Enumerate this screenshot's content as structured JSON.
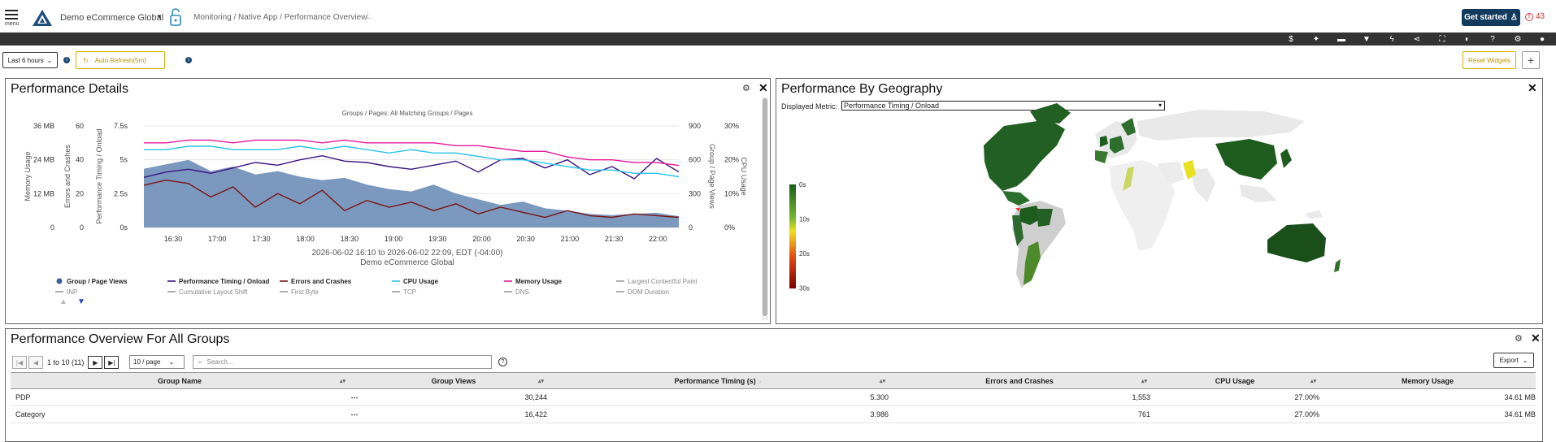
{
  "header": {
    "menu_label": "menu",
    "app_name": "Demo eCommerce Global",
    "breadcrumb": "Monitoring / Native App / Performance Overview",
    "get_started": "Get started",
    "alert_count": "43"
  },
  "toolbar_icons": [
    "dollar-icon",
    "magic-icon",
    "comment-icon",
    "filter-icon",
    "bolt-icon",
    "share-icon",
    "fullscreen-icon",
    "contrast-icon",
    "help-icon",
    "gear-icon",
    "user-icon"
  ],
  "controls": {
    "time_range": "Last 6 hours",
    "auto_refresh": "Auto Refresh(5m)",
    "reset_widgets": "Reset Widgets",
    "add": "+"
  },
  "perf_details": {
    "title": "Performance Details",
    "subtitle": "Groups / Pages: All Matching Groups / Pages",
    "xlabel_range": "2026-06-02 16:10 to 2026-06-02 22:09, EDT (-04:00)",
    "xlabel_app": "Demo eCommerce Global",
    "axis_memory": "Memory Usage",
    "axis_errors": "Errors and Crashes",
    "axis_timing": "Performance Timing / Onload",
    "axis_views": "Group / Page Views",
    "axis_cpu": "CPU Usage"
  },
  "chart_data": {
    "type": "area",
    "title": "Groups / Pages: All Matching Groups / Pages",
    "x_ticks": [
      "16:30",
      "17:00",
      "17:30",
      "18:00",
      "18:30",
      "19:00",
      "19:30",
      "20:00",
      "20:30",
      "21:00",
      "21:30",
      "22:00"
    ],
    "axes": {
      "memory": {
        "label": "Memory Usage",
        "ticks": [
          "36 MB",
          "24 MB",
          "12 MB",
          "0"
        ]
      },
      "errors": {
        "label": "Errors and Crashes",
        "ticks": [
          "60",
          "40",
          "20",
          "0"
        ]
      },
      "timing": {
        "label": "Performance Timing / Onload",
        "ticks": [
          "7.5s",
          "5s",
          "2.5s",
          "0s"
        ],
        "ylim": [
          0,
          7.5
        ]
      },
      "views": {
        "label": "Group / Page Views",
        "ticks": [
          "900",
          "600",
          "300",
          "0"
        ],
        "ylim": [
          0,
          900
        ]
      },
      "cpu": {
        "label": "CPU Usage",
        "ticks": [
          "30%",
          "20%",
          "10%",
          "0%"
        ]
      }
    },
    "series": [
      {
        "name": "Group / Page Views",
        "color": "#6d8db8",
        "type": "area",
        "values": [
          520,
          560,
          600,
          500,
          540,
          470,
          500,
          450,
          420,
          440,
          380,
          340,
          320,
          380,
          300,
          250,
          200,
          230,
          170,
          150,
          120,
          110,
          120,
          130,
          100
        ]
      },
      {
        "name": "Performance Timing / Onload",
        "color": "#3b1482",
        "type": "line",
        "values": [
          3.7,
          4.1,
          4.3,
          4.0,
          4.4,
          4.8,
          4.6,
          5.0,
          5.3,
          4.9,
          4.8,
          4.5,
          4.3,
          4.6,
          4.9,
          4.1,
          5.0,
          5.1,
          4.4,
          5.0,
          3.9,
          4.5,
          3.6,
          5.1,
          4.1
        ]
      },
      {
        "name": "Errors and Crashes",
        "color": "#7a1414",
        "type": "line",
        "values": [
          25,
          28,
          26,
          18,
          24,
          12,
          20,
          14,
          22,
          10,
          16,
          12,
          15,
          10,
          14,
          8,
          12,
          9,
          6,
          10,
          7,
          6,
          8,
          7,
          6
        ]
      },
      {
        "name": "CPU Usage",
        "color": "#2cc2ee",
        "type": "line",
        "values": [
          23,
          23,
          24,
          24,
          23,
          23,
          23,
          24,
          23,
          24,
          23,
          22,
          23,
          22,
          22,
          21,
          20,
          20,
          19,
          18,
          17,
          17,
          16,
          16,
          15
        ]
      },
      {
        "name": "Memory Usage",
        "color": "#e5179b",
        "type": "line",
        "values": [
          30,
          30,
          31,
          31,
          30,
          31,
          31,
          31,
          30,
          31,
          30,
          30,
          30,
          30,
          29,
          29,
          28,
          27,
          27,
          25,
          24,
          24,
          23,
          23,
          22
        ]
      }
    ],
    "legend": [
      {
        "name": "Group / Page Views",
        "color": "#3a5f94",
        "marker": "dot",
        "bold": true
      },
      {
        "name": "Performance Timing / Onload",
        "color": "#3b1482",
        "marker": "line",
        "bold": true
      },
      {
        "name": "Errors and Crashes",
        "color": "#7a1414",
        "marker": "line",
        "bold": true
      },
      {
        "name": "CPU Usage",
        "color": "#2cc2ee",
        "marker": "line",
        "bold": true
      },
      {
        "name": "Memory Usage",
        "color": "#e5179b",
        "marker": "line",
        "bold": true
      },
      {
        "name": "Largest Contentful Paint",
        "color": "#999999",
        "marker": "line",
        "bold": false
      },
      {
        "name": "INP",
        "color": "#999999",
        "marker": "line",
        "bold": false
      },
      {
        "name": "Cumulative Layout Shift",
        "color": "#999999",
        "marker": "line",
        "bold": false
      },
      {
        "name": "First Byte",
        "color": "#999999",
        "marker": "line",
        "bold": false
      },
      {
        "name": "TCP",
        "color": "#999999",
        "marker": "line",
        "bold": false
      },
      {
        "name": "DNS",
        "color": "#999999",
        "marker": "line",
        "bold": false
      },
      {
        "name": "DOM Duration",
        "color": "#999999",
        "marker": "line",
        "bold": false
      }
    ],
    "legend_position": "bottom"
  },
  "geo": {
    "title": "Performance By Geography",
    "metric_label": "Displayed Metric:",
    "metric_value": "Performance Timing / Onload",
    "scale_labels": [
      "0s",
      "10s",
      "20s",
      "30s"
    ]
  },
  "overview": {
    "title": "Performance Overview For All Groups",
    "page_info": "1 to 10 (11)",
    "per_page": "10 / page",
    "search_placeholder": "Search...",
    "export_label": "Export",
    "columns": [
      "Group Name",
      "",
      "Group Views",
      "Performance Timing (s)",
      "Errors and Crashes",
      "CPU Usage",
      "Memory Usage"
    ],
    "rows": [
      {
        "name": "PDP",
        "views": "30,244",
        "timing": "5.300",
        "errors": "1,553",
        "cpu": "27.00%",
        "memory": "34.61 MB"
      },
      {
        "name": "Category",
        "views": "16,422",
        "timing": "3.986",
        "errors": "761",
        "cpu": "27.00%",
        "memory": "34.61 MB"
      }
    ]
  }
}
